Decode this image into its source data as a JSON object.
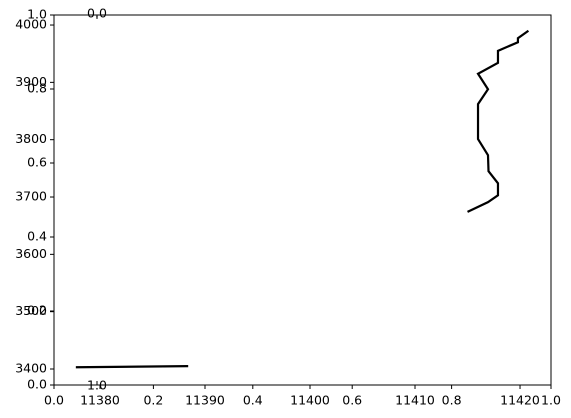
{
  "chart_data": {
    "type": "line",
    "xlim": [
      11375.62,
      11422.95
    ],
    "ylim": [
      3372.1,
      4017.5
    ],
    "xticks": [
      11380,
      11390,
      11400,
      11410,
      11420
    ],
    "yticks": [
      3400,
      3500,
      3600,
      3700,
      3800,
      3900,
      4000
    ],
    "overlay_lim": [
      0,
      1
    ],
    "overlay_ticks": [
      {
        "value": 0,
        "label": "0.0"
      },
      0.2,
      0.4,
      0.6,
      0.8,
      {
        "value": 1,
        "label": "1.0"
      }
    ],
    "inner_ticks": [
      {
        "value": 0,
        "label": "0.0"
      },
      {
        "value": 1,
        "label": "1.0"
      }
    ],
    "series": [
      {
        "color": "#000000",
        "x": [
          11377.7,
          11388.4
        ],
        "y": [
          3403,
          3405
        ]
      },
      {
        "color": "#000000",
        "x": [
          11415.0,
          11416.95,
          11417.9,
          11417.9,
          11417.0,
          11416.95,
          11416.0,
          11416.0,
          11416.95,
          11416.0,
          11417.9,
          11417.9,
          11419.8,
          11419.8,
          11420.8
        ],
        "y": [
          3674,
          3691,
          3703,
          3724,
          3745,
          3773,
          3801,
          3862,
          3888,
          3915,
          3934,
          3955,
          3970,
          3977,
          3990
        ]
      }
    ]
  }
}
